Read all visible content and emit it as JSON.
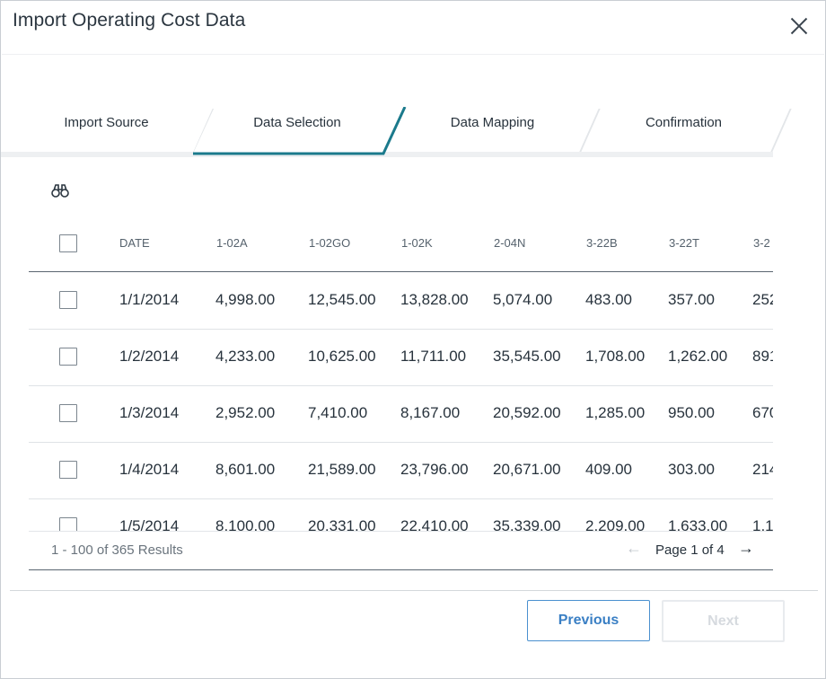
{
  "dialog": {
    "title": "Import Operating Cost Data"
  },
  "stepper": {
    "steps": [
      {
        "label": "Import Source",
        "active": false
      },
      {
        "label": "Data Selection",
        "active": true
      },
      {
        "label": "Data Mapping",
        "active": false
      },
      {
        "label": "Confirmation",
        "active": false
      }
    ],
    "accent_color": "#1b7a8c"
  },
  "grid": {
    "columns": [
      "DATE",
      "1-02A",
      "1-02GO",
      "1-02K",
      "2-04N",
      "3-22B",
      "3-22T",
      "3-2"
    ],
    "rows": [
      [
        "1/1/2014",
        "4,998.00",
        "12,545.00",
        "13,828.00",
        "5,074.00",
        "483.00",
        "357.00",
        "252"
      ],
      [
        "1/2/2014",
        "4,233.00",
        "10,625.00",
        "11,711.00",
        "35,545.00",
        "1,708.00",
        "1,262.00",
        "891"
      ],
      [
        "1/3/2014",
        "2,952.00",
        "7,410.00",
        "8,167.00",
        "20,592.00",
        "1,285.00",
        "950.00",
        "670"
      ],
      [
        "1/4/2014",
        "8,601.00",
        "21,589.00",
        "23,796.00",
        "20,671.00",
        "409.00",
        "303.00",
        "214"
      ],
      [
        "1/5/2014",
        "8,100.00",
        "20,331.00",
        "22,410.00",
        "35,339.00",
        "2,209.00",
        "1,633.00",
        "1,1"
      ]
    ]
  },
  "pager": {
    "results": "1 - 100 of 365 Results",
    "page_label": "Page 1 of 4",
    "prev_icon": "arrow-left-icon",
    "next_icon": "arrow-right-icon"
  },
  "footer": {
    "previous_label": "Previous",
    "next_label": "Next"
  }
}
